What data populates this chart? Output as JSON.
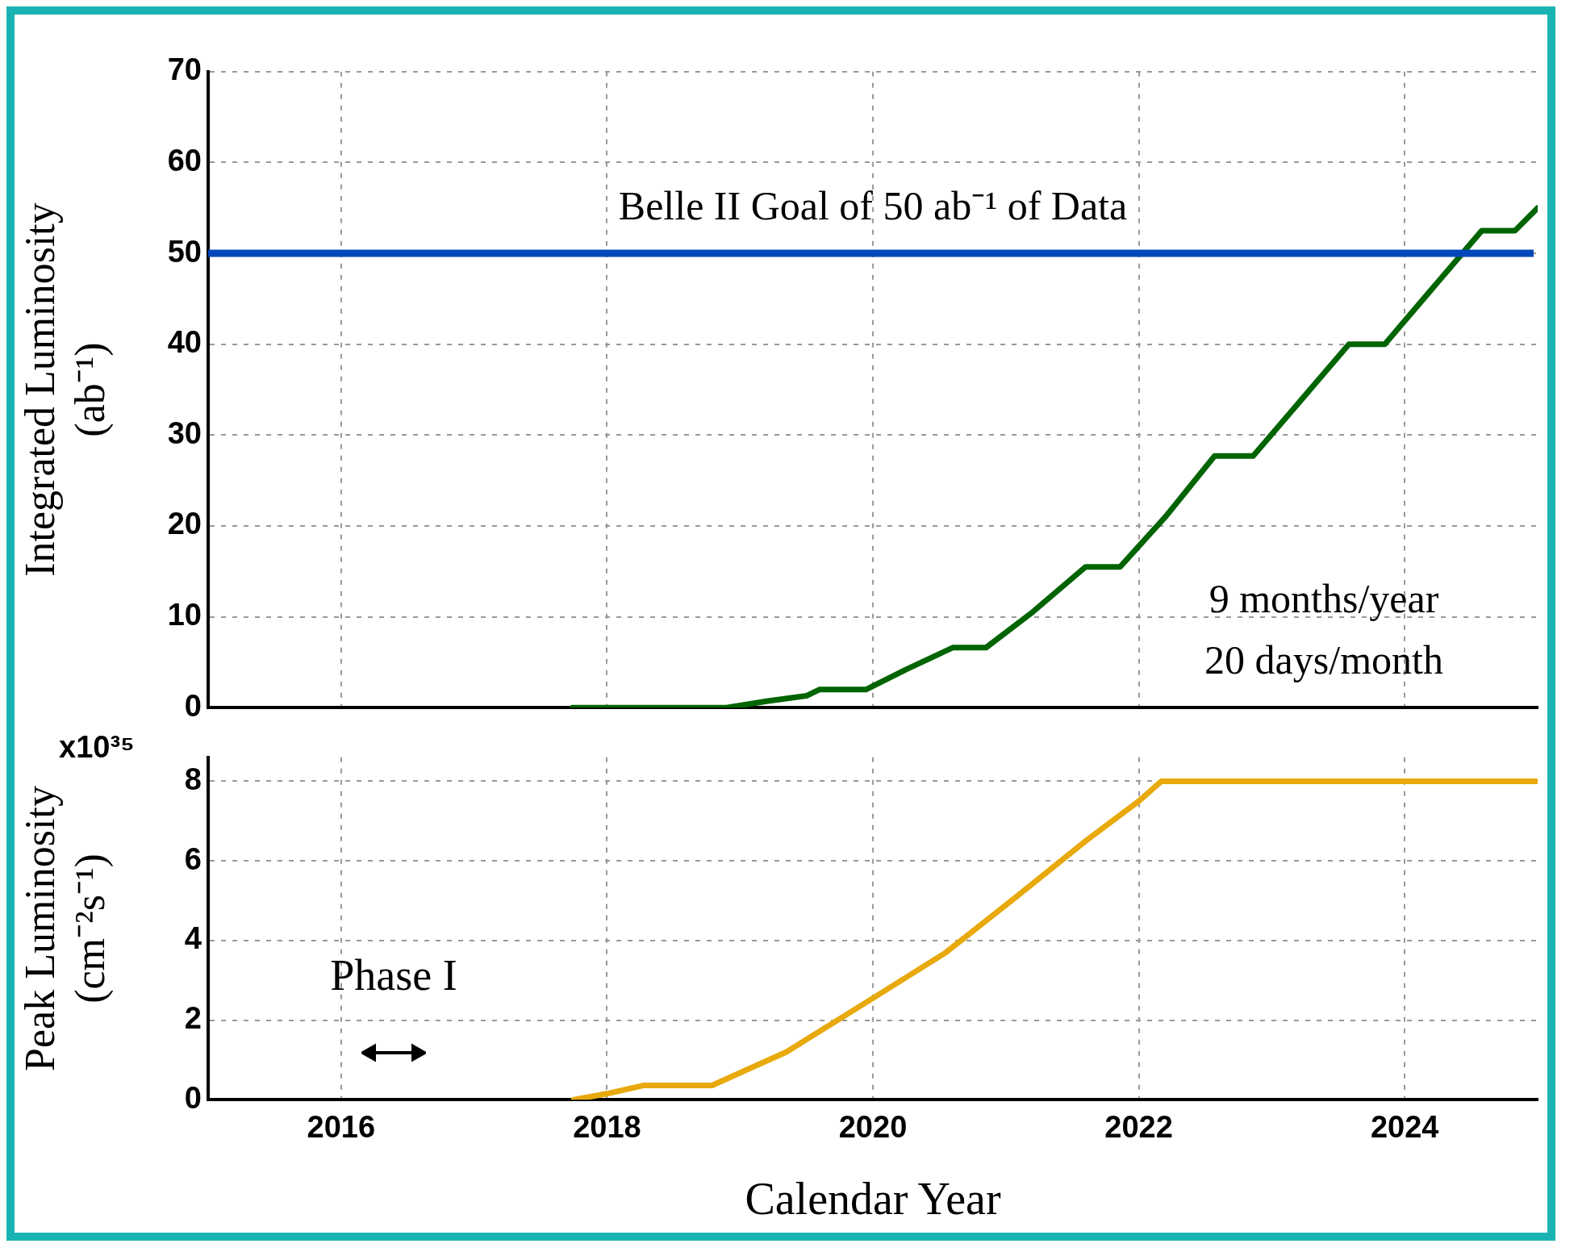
{
  "chart_data": [
    {
      "type": "line",
      "ylabel": "Integrated Luminosity (ab⁻¹)",
      "xlim": [
        2015,
        2025
      ],
      "xticks": [
        2016,
        2018,
        2020,
        2022,
        2024
      ],
      "ylim": [
        0,
        70
      ],
      "yticks": [
        0,
        10,
        20,
        30,
        40,
        50,
        60,
        70
      ],
      "tick_labels": "y",
      "grid": true,
      "legend": false,
      "marker": "none",
      "series": [
        {
          "color": "#006400",
          "x": [
            2017.74,
            2018.9,
            2019.2,
            2019.5,
            2019.6,
            2019.95,
            2020.25,
            2020.6,
            2020.85,
            2021.2,
            2021.6,
            2021.86,
            2022.2,
            2022.57,
            2022.86,
            2023.2,
            2023.58,
            2023.85,
            2024.2,
            2024.58,
            2024.83,
            2025
          ],
          "values": [
            0,
            0,
            0.7,
            1.3,
            2,
            2,
            4.2,
            6.6,
            6.6,
            10.5,
            15.5,
            15.5,
            21,
            27.7,
            27.7,
            33.5,
            40,
            40,
            46,
            52.5,
            52.5,
            55
          ]
        }
      ],
      "ref_lines": [
        {
          "axis": "y",
          "value": 50,
          "label": "Belle II Goal of 50 ab⁻¹ of Data",
          "color": "#0047bb"
        }
      ],
      "annotations": [
        "9 months/year",
        "20 days/month"
      ]
    },
    {
      "type": "line",
      "ylabel": "Peak Luminosity (cm⁻²s⁻¹)",
      "xlabel": "Calendar Year",
      "xlim": [
        2015,
        2025
      ],
      "xticks": [
        2016,
        2018,
        2020,
        2022,
        2024
      ],
      "ylim": [
        0,
        8.6
      ],
      "yticks": [
        0,
        2,
        4,
        6,
        8
      ],
      "grid": true,
      "legend": false,
      "marker": "none",
      "series": [
        {
          "color": "#e8a90c",
          "x": [
            2017.75,
            2018,
            2018.28,
            2018.79,
            2019.35,
            2020,
            2020.55,
            2021.08,
            2021.6,
            2022,
            2022.17,
            2025
          ],
          "values": [
            0,
            0.15,
            0.36,
            0.36,
            1.2,
            2.55,
            3.7,
            5.1,
            6.5,
            7.5,
            8,
            8
          ]
        }
      ],
      "annotations": [
        "x10³⁵",
        "Phase I"
      ]
    }
  ]
}
